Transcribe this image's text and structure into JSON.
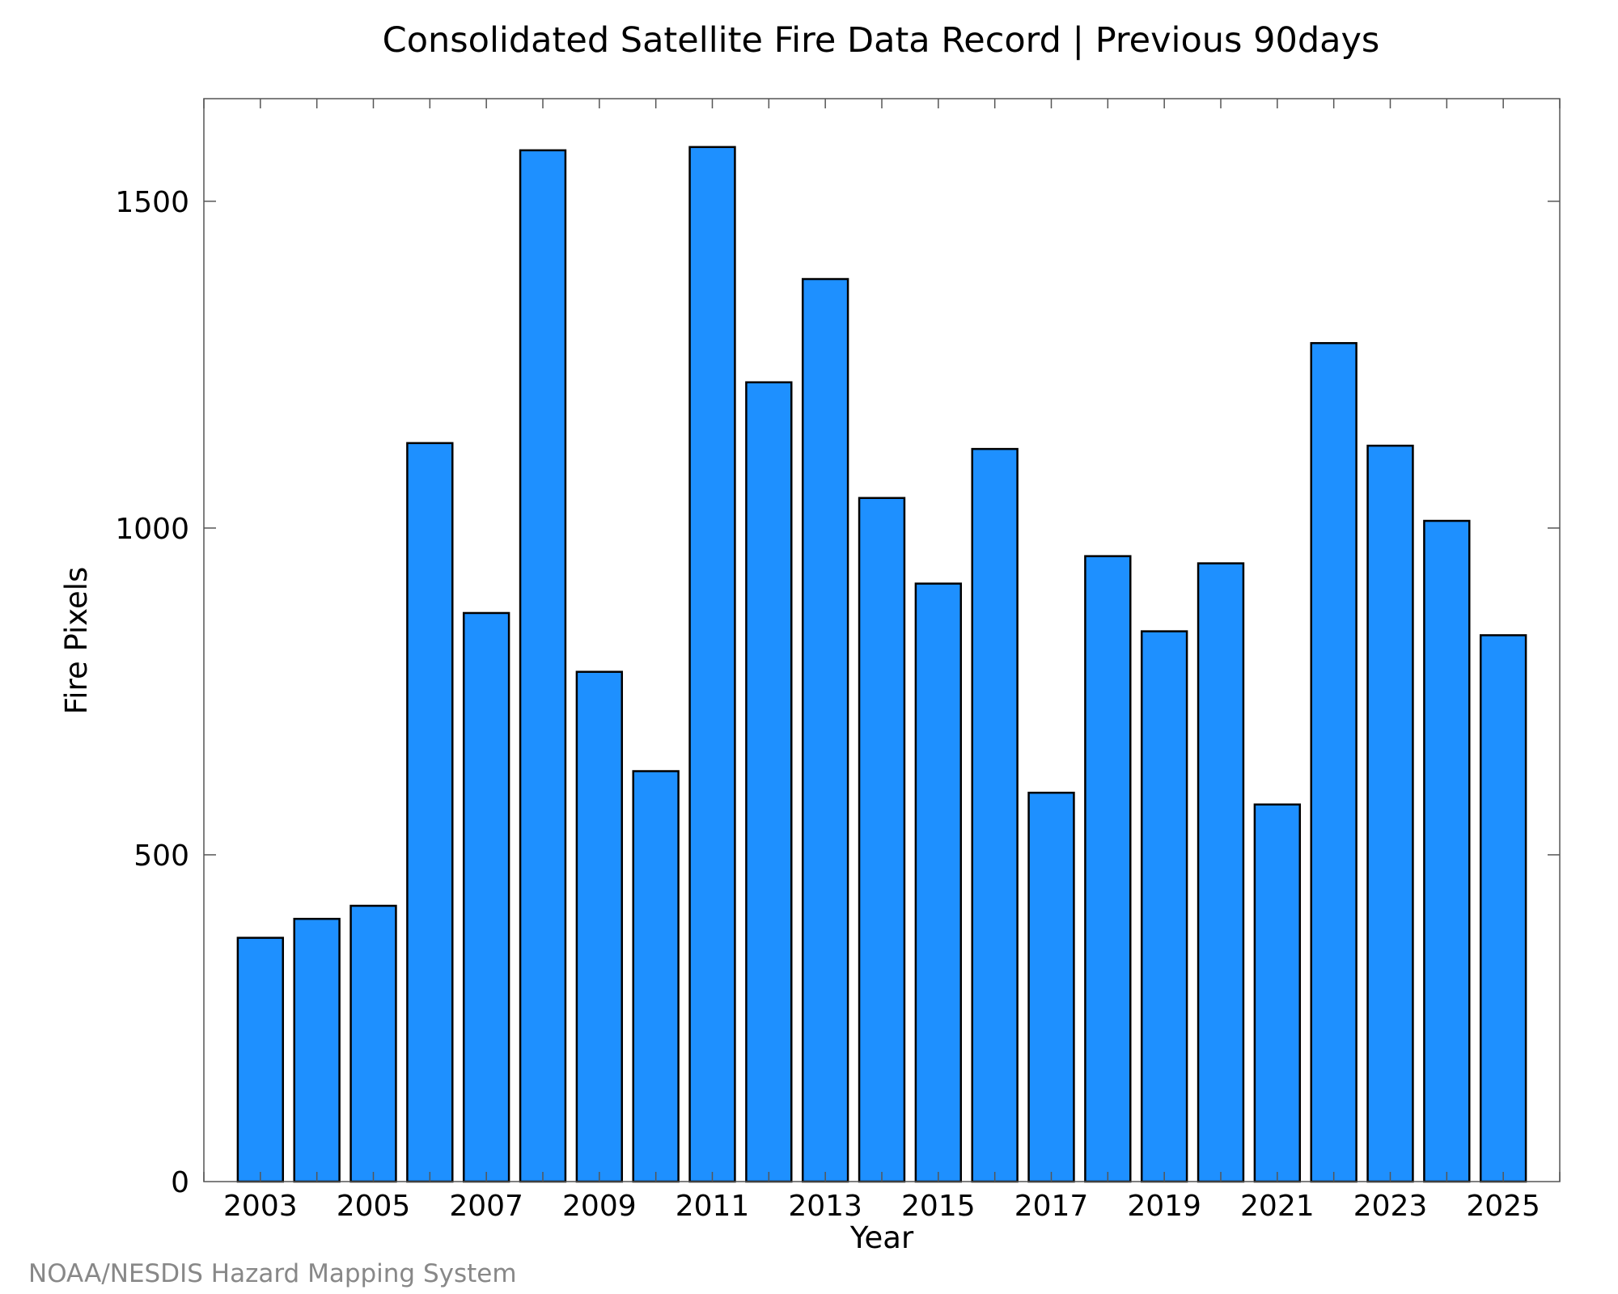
{
  "chart_data": {
    "type": "bar",
    "title": "Consolidated Satellite Fire Data Record | Previous 90days",
    "xlabel": "Year",
    "ylabel": "Fire Pixels",
    "credit": "NOAA/NESDIS Hazard Mapping System",
    "categories": [
      "2003",
      "2004",
      "2005",
      "2006",
      "2007",
      "2008",
      "2009",
      "2010",
      "2011",
      "2012",
      "2013",
      "2014",
      "2015",
      "2016",
      "2017",
      "2018",
      "2019",
      "2020",
      "2021",
      "2022",
      "2023",
      "2024",
      "2025"
    ],
    "values": [
      373,
      402,
      422,
      1130,
      870,
      1578,
      780,
      628,
      1583,
      1223,
      1381,
      1046,
      915,
      1121,
      595,
      957,
      842,
      946,
      577,
      1283,
      1126,
      1011,
      836
    ],
    "x_tick_labels": [
      "2003",
      "2005",
      "2007",
      "2009",
      "2011",
      "2013",
      "2015",
      "2017",
      "2019",
      "2021",
      "2023",
      "2025"
    ],
    "y_tick_labels": [
      "0",
      "500",
      "1000",
      "1500"
    ],
    "y_ticks": [
      0,
      500,
      1000,
      1500
    ],
    "ylim": [
      0,
      1657
    ],
    "xlim": [
      2002,
      2026
    ],
    "bar_color": "#1E90FF",
    "bar_edge_color": "#000000",
    "grid": false,
    "legend": "none"
  }
}
